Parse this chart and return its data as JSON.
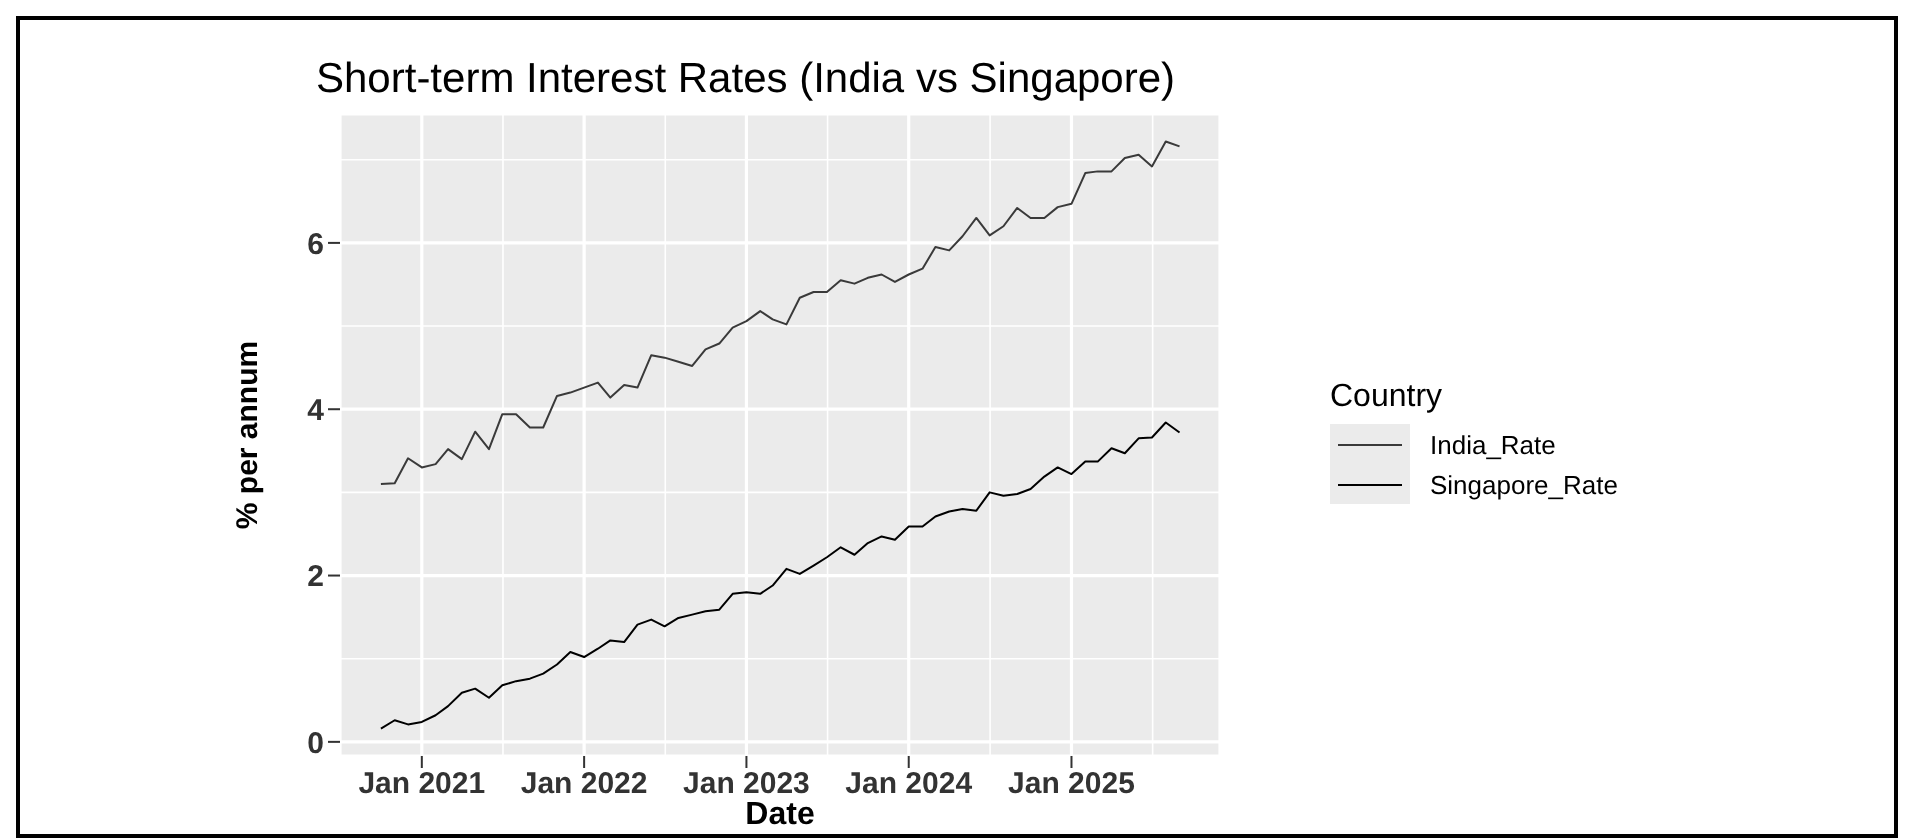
{
  "chart_data": {
    "type": "line",
    "title": "Short-term Interest Rates (India vs Singapore)",
    "xlabel": "Date",
    "ylabel": "% per annum",
    "legend_title": "Country",
    "legend": "right",
    "grid": true,
    "x": [
      "2020-10",
      "2020-11",
      "2020-12",
      "2021-01",
      "2021-02",
      "2021-03",
      "2021-04",
      "2021-05",
      "2021-06",
      "2021-07",
      "2021-08",
      "2021-09",
      "2021-10",
      "2021-11",
      "2021-12",
      "2022-01",
      "2022-02",
      "2022-03",
      "2022-04",
      "2022-05",
      "2022-06",
      "2022-07",
      "2022-08",
      "2022-09",
      "2022-10",
      "2022-11",
      "2022-12",
      "2023-01",
      "2023-02",
      "2023-03",
      "2023-04",
      "2023-05",
      "2023-06",
      "2023-07",
      "2023-08",
      "2023-09",
      "2023-10",
      "2023-11",
      "2023-12",
      "2024-01",
      "2024-02",
      "2024-03",
      "2024-04",
      "2024-05",
      "2024-06",
      "2024-07",
      "2024-08",
      "2024-09",
      "2024-10",
      "2024-11",
      "2024-12",
      "2025-01",
      "2025-02",
      "2025-03",
      "2025-04",
      "2025-05",
      "2025-06",
      "2025-07",
      "2025-08",
      "2025-09"
    ],
    "xlim": [
      "2020-07-01",
      "2025-12-01"
    ],
    "xticks": [
      {
        "value": "2021-01-01",
        "label": "Jan 2021"
      },
      {
        "value": "2022-01-01",
        "label": "Jan 2022"
      },
      {
        "value": "2023-01-01",
        "label": "Jan 2023"
      },
      {
        "value": "2024-01-01",
        "label": "Jan 2024"
      },
      {
        "value": "2025-01-01",
        "label": "Jan 2025"
      }
    ],
    "ylim": [
      -0.17,
      7.55
    ],
    "yticks": [
      0,
      2,
      4,
      6
    ],
    "series": [
      {
        "name": "India_Rate",
        "color": "#3a3a3a",
        "values": [
          3.1,
          3.11,
          3.41,
          3.3,
          3.34,
          3.52,
          3.4,
          3.73,
          3.52,
          3.94,
          3.94,
          3.78,
          3.78,
          4.16,
          4.2,
          4.26,
          4.32,
          4.14,
          4.29,
          4.26,
          4.65,
          4.62,
          4.57,
          4.52,
          4.72,
          4.79,
          4.98,
          5.06,
          5.18,
          5.08,
          5.02,
          5.34,
          5.41,
          5.41,
          5.55,
          5.51,
          5.58,
          5.62,
          5.53,
          5.62,
          5.69,
          5.95,
          5.91,
          6.08,
          6.3,
          6.09,
          6.2,
          6.42,
          6.3,
          6.3,
          6.43,
          6.47,
          6.84,
          6.86,
          6.86,
          7.02,
          7.06,
          6.92,
          7.22,
          7.16
        ]
      },
      {
        "name": "Singapore_Rate",
        "color": "#000000",
        "values": [
          0.16,
          0.26,
          0.21,
          0.24,
          0.32,
          0.43,
          0.59,
          0.64,
          0.53,
          0.68,
          0.73,
          0.76,
          0.82,
          0.93,
          1.08,
          1.02,
          1.12,
          1.22,
          1.2,
          1.41,
          1.47,
          1.39,
          1.49,
          1.53,
          1.57,
          1.59,
          1.78,
          1.8,
          1.78,
          1.88,
          2.08,
          2.02,
          2.12,
          2.22,
          2.34,
          2.25,
          2.39,
          2.47,
          2.43,
          2.59,
          2.59,
          2.71,
          2.77,
          2.8,
          2.78,
          3.0,
          2.96,
          2.98,
          3.04,
          3.19,
          3.3,
          3.22,
          3.37,
          3.37,
          3.53,
          3.47,
          3.65,
          3.66,
          3.84,
          3.72
        ]
      }
    ]
  }
}
